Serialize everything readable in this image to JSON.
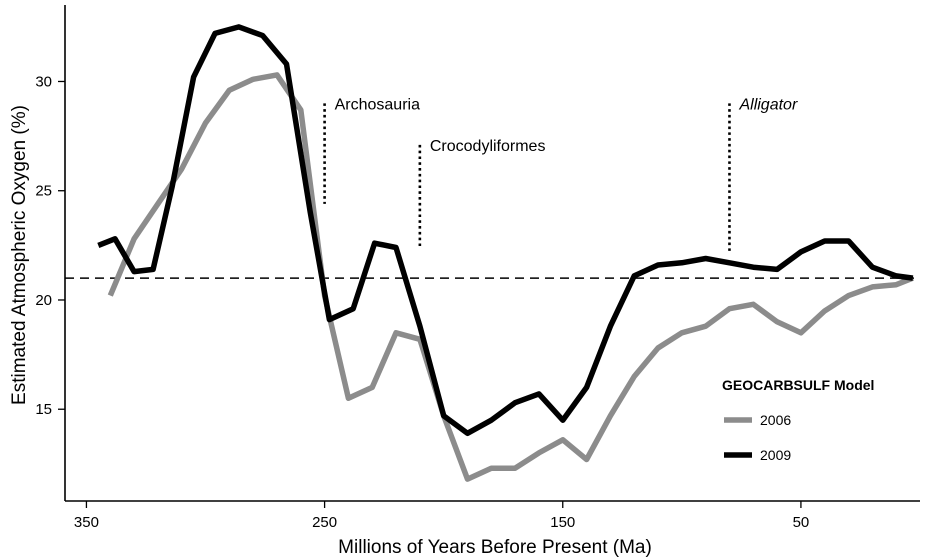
{
  "chart_data": {
    "type": "line",
    "title": "",
    "xlabel": "Millions of Years Before Present (Ma)",
    "ylabel": "Estimated Atmospheric Oxygen (%)",
    "xlim": [
      359,
      0
    ],
    "ylim": [
      10.8,
      33.5
    ],
    "x_reversed": true,
    "xticks": [
      350,
      250,
      150,
      50
    ],
    "yticks": [
      15,
      20,
      25,
      30
    ],
    "grid": false,
    "reference_line": {
      "y": 21,
      "style": "dashed"
    },
    "annotations": [
      {
        "label": "Archosauria",
        "x": 250,
        "y_top": 29,
        "y_bottom": 24.4,
        "italic": false
      },
      {
        "label": "Crocodyliformes",
        "x": 210,
        "y_top": 27.1,
        "y_bottom": 22.4,
        "italic": false
      },
      {
        "label": "Alligator",
        "x": 80,
        "y_top": 29,
        "y_bottom": 22.2,
        "italic": true
      }
    ],
    "legend": {
      "title": "GEOCARBSULF Model",
      "position": "bottom-right"
    },
    "series": [
      {
        "name": "2006",
        "color": "#8c8c8c",
        "x": [
          340,
          330,
          320,
          310,
          300,
          290,
          280,
          270,
          260,
          250,
          240,
          230,
          220,
          210,
          200,
          190,
          180,
          170,
          160,
          150,
          140,
          130,
          120,
          110,
          100,
          90,
          80,
          70,
          60,
          50,
          40,
          30,
          20,
          10,
          3
        ],
        "y": [
          20.2,
          22.8,
          24.4,
          26.0,
          28.1,
          29.6,
          30.1,
          30.3,
          28.7,
          20.2,
          15.5,
          16.0,
          18.5,
          18.2,
          14.7,
          11.8,
          12.3,
          12.3,
          13.0,
          13.6,
          12.7,
          14.7,
          16.5,
          17.8,
          18.5,
          18.8,
          19.6,
          19.8,
          19.0,
          18.5,
          19.5,
          20.2,
          20.6,
          20.7,
          21.0
        ]
      },
      {
        "name": "2009",
        "color": "#000000",
        "x": [
          345,
          338,
          330,
          322,
          314,
          305,
          296,
          286,
          276,
          266,
          256,
          248,
          238,
          229,
          220,
          210,
          200,
          190,
          180,
          170,
          160,
          150,
          140,
          130,
          120,
          110,
          100,
          90,
          80,
          70,
          60,
          50,
          40,
          30,
          20,
          10,
          3
        ],
        "y": [
          22.5,
          22.8,
          21.3,
          21.4,
          25.2,
          30.2,
          32.2,
          32.5,
          32.1,
          30.8,
          24.0,
          19.1,
          19.6,
          22.6,
          22.4,
          18.8,
          14.7,
          13.9,
          14.5,
          15.3,
          15.7,
          14.5,
          16.0,
          18.8,
          21.1,
          21.6,
          21.7,
          21.9,
          21.7,
          21.5,
          21.4,
          22.2,
          22.7,
          22.7,
          21.5,
          21.1,
          21.0
        ]
      }
    ]
  }
}
